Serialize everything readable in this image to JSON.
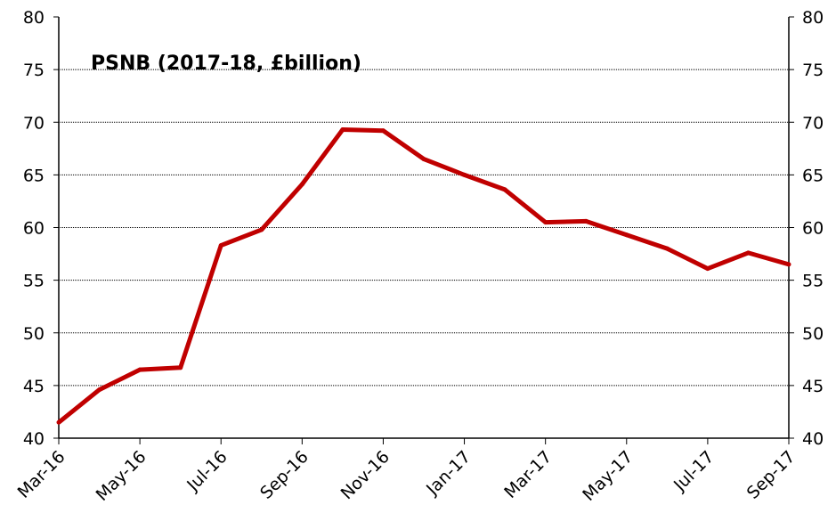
{
  "chart_data": {
    "type": "line",
    "title": "PSNB (2017-18, £billion)",
    "xlabel": "",
    "ylabel": "",
    "ylim": [
      40,
      80
    ],
    "yticks": [
      "40",
      "45",
      "50",
      "55",
      "60",
      "65",
      "70",
      "75",
      "80"
    ],
    "x": [
      "Mar-16",
      "Apr-16",
      "May-16",
      "Jun-16",
      "Jul-16",
      "Aug-16",
      "Sep-16",
      "Oct-16",
      "Nov-16",
      "Dec-16",
      "Jan-17",
      "Feb-17",
      "Mar-17",
      "Apr-17",
      "May-17",
      "Jun-17",
      "Jul-17",
      "Aug-17",
      "Sep-17"
    ],
    "xtick_labels": [
      "Mar-16",
      "May-16",
      "Jul-16",
      "Sep-16",
      "Nov-16",
      "Jan-17",
      "Mar-17",
      "May-17",
      "Jul-17",
      "Sep-17"
    ],
    "series": [
      {
        "values": [
          41.5,
          44.6,
          46.5,
          46.7,
          58.3,
          59.8,
          64.1,
          69.3,
          69.2,
          66.5,
          65.0,
          63.6,
          60.5,
          60.6,
          59.3,
          58.0,
          56.1,
          57.6,
          56.5
        ],
        "color": "#c00000"
      }
    ],
    "grid": true,
    "secondary_y_axis": true,
    "legend": "none"
  }
}
